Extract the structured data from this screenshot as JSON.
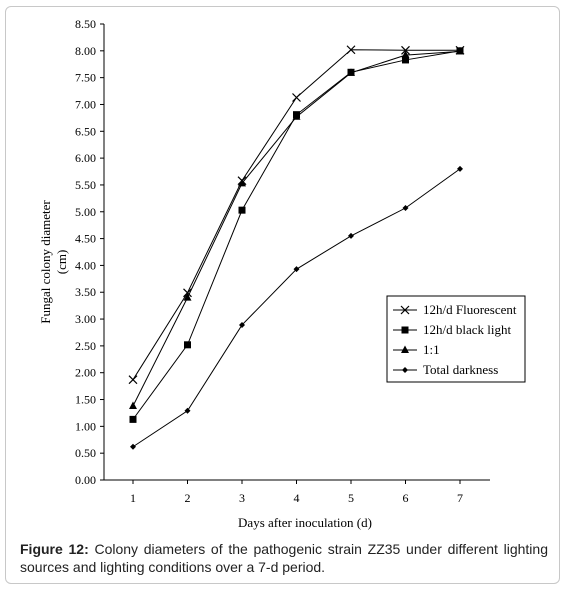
{
  "chart_data": {
    "type": "line",
    "x": [
      1,
      2,
      3,
      4,
      5,
      6,
      7
    ],
    "xlabel": "Days after inoculation (d)",
    "ylabel": [
      "Fungal colony diameter",
      "(cm)"
    ],
    "ylim": [
      0,
      8.5
    ],
    "yticks": [
      "0.00",
      "0.50",
      "1.00",
      "1.50",
      "2.00",
      "2.50",
      "3.00",
      "3.50",
      "4.00",
      "4.50",
      "5.00",
      "5.50",
      "6.00",
      "6.50",
      "7.00",
      "7.50",
      "8.00",
      "8.50"
    ],
    "xticks": [
      "1",
      "2",
      "3",
      "4",
      "5",
      "6",
      "7"
    ],
    "legend_position": "right, middle",
    "grid": false,
    "series": [
      {
        "name": "12h/d Fluorescent",
        "marker": "x",
        "values": [
          1.87,
          3.49,
          5.58,
          7.13,
          8.02,
          8.01,
          8.01
        ]
      },
      {
        "name": "12h/d black light",
        "marker": "square",
        "values": [
          1.13,
          2.52,
          5.03,
          6.81,
          7.6,
          7.83,
          8.0
        ]
      },
      {
        "name": "1:1",
        "marker": "triangle",
        "values": [
          1.38,
          3.4,
          5.53,
          6.77,
          7.59,
          7.92,
          7.99
        ]
      },
      {
        "name": "Total darkness",
        "marker": "diamond",
        "values": [
          0.62,
          1.29,
          2.89,
          3.93,
          4.55,
          5.07,
          5.8
        ]
      }
    ]
  },
  "caption": {
    "label": "Figure 12:",
    "text": "Colony diameters of the pathogenic strain ZZ35 under different lighting sources and lighting conditions over a 7-d period."
  }
}
